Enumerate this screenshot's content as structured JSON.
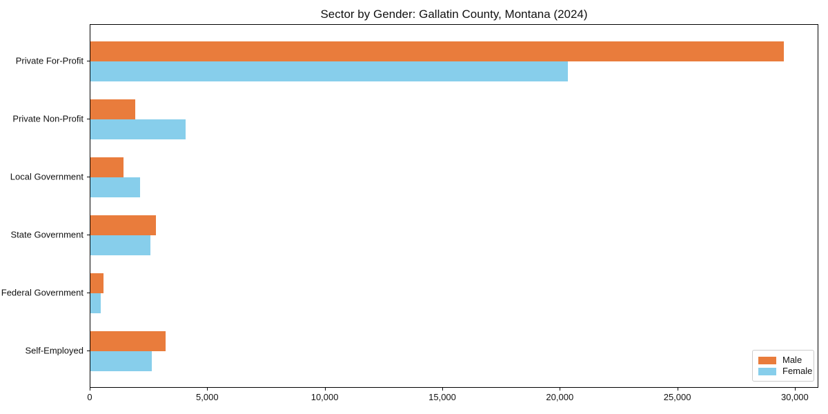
{
  "chart_data": {
    "type": "bar",
    "orientation": "horizontal",
    "title": "Sector by Gender: Gallatin County, Montana (2024)",
    "xlabel": "",
    "ylabel": "",
    "categories": [
      "Private For-Profit",
      "Private Non-Profit",
      "Local Government",
      "State Government",
      "Federal Government",
      "Self-Employed"
    ],
    "series": [
      {
        "name": "Male",
        "color": "#E97C3C",
        "values": [
          29500,
          1900,
          1400,
          2800,
          550,
          3200
        ]
      },
      {
        "name": "Female",
        "color": "#87CEEB",
        "values": [
          20300,
          4050,
          2100,
          2550,
          450,
          2600
        ]
      }
    ],
    "xlim": [
      0,
      31000
    ],
    "xticks": [
      0,
      5000,
      10000,
      15000,
      20000,
      25000,
      30000
    ],
    "xtick_labels": [
      "0",
      "5,000",
      "10,000",
      "15,000",
      "20,000",
      "25,000",
      "30,000"
    ],
    "grid": false,
    "legend": {
      "position": "lower right",
      "entries": [
        "Male",
        "Female"
      ]
    },
    "colors": {
      "background": "#ffffff",
      "frame": "#000000",
      "legend_border": "#cccccc"
    }
  }
}
